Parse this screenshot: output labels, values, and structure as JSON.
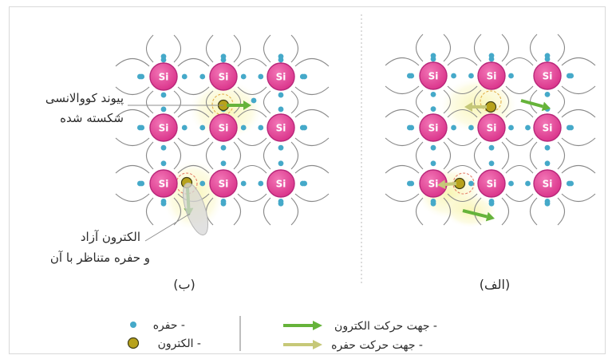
{
  "panels": {
    "left_label": "(ب)",
    "right_label": "(الف)"
  },
  "atom_symbol": "Si",
  "annotations": {
    "broken_bond_line1": "پیوند کووالانسی",
    "broken_bond_line2": "شکسته شده",
    "free_electron_line1": "الکترون آزاد",
    "free_electron_line2": "و حفره متناظر با آن"
  },
  "legend": {
    "hole": "حفره -",
    "electron": "الکترون -",
    "electron_direction": "جهت حرکت الکترون -",
    "hole_direction": "جهت حرکت حفره -"
  },
  "colors": {
    "atom": "#e0459a",
    "atom_stroke": "#b8287a",
    "bond_electron": "#45a9c9",
    "free_electron": "#b7a21c",
    "electron_arrow": "#66b33a",
    "hole_arrow": "#c6c878",
    "glow": "#f4f1a9"
  }
}
